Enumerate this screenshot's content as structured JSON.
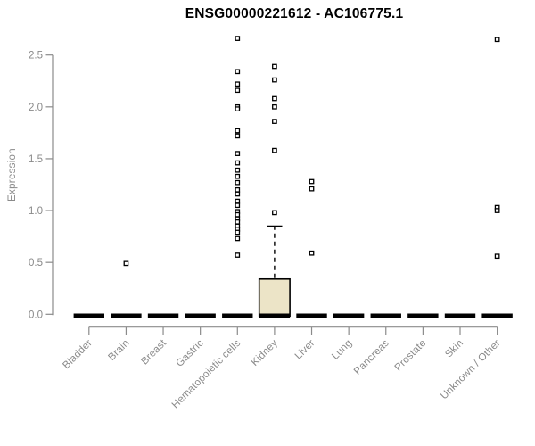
{
  "chart_data": {
    "type": "boxplot",
    "title": "ENSG00000221612 - AC106775.1",
    "ylabel": "Expression",
    "xlabel": "",
    "grid": false,
    "legend": null,
    "ylim": [
      0,
      2.5
    ],
    "yticks": [
      0,
      0.5,
      1.0,
      1.5,
      2.0,
      2.5
    ],
    "ytick_labels": [
      "0.0",
      "0.5",
      "1.0",
      "1.5",
      "2.0",
      "2.5"
    ],
    "categories": [
      "Bladder",
      "Brain",
      "Breast",
      "Gastric",
      "Hematopoietic cells",
      "Kidney",
      "Liver",
      "Lung",
      "Pancreas",
      "Prostate",
      "Skin",
      "Unknown / Other"
    ],
    "colors": {
      "axis": "#8b8b8b",
      "text": "#8a8a8a",
      "title": "#000000",
      "box_fill": "#ece4c7",
      "box_stroke": "#000000",
      "median": "#000000",
      "point_fill": "#ffffff",
      "point_stroke": "#000000",
      "background": "#ffffff"
    },
    "series": [
      {
        "category": "Bladder",
        "q1": 0,
        "median": 0,
        "q3": 0,
        "whisker_low": 0,
        "whisker_high": 0,
        "outliers": []
      },
      {
        "category": "Brain",
        "q1": 0,
        "median": 0,
        "q3": 0,
        "whisker_low": 0,
        "whisker_high": 0,
        "outliers": [
          0.49
        ]
      },
      {
        "category": "Breast",
        "q1": 0,
        "median": 0,
        "q3": 0,
        "whisker_low": 0,
        "whisker_high": 0,
        "outliers": []
      },
      {
        "category": "Gastric",
        "q1": 0,
        "median": 0,
        "q3": 0,
        "whisker_low": 0,
        "whisker_high": 0,
        "outliers": []
      },
      {
        "category": "Hematopoietic cells",
        "q1": 0,
        "median": 0,
        "q3": 0,
        "whisker_low": 0,
        "whisker_high": 0,
        "outliers": [
          2.66,
          2.34,
          2.22,
          2.16,
          2.0,
          1.98,
          1.77,
          1.72,
          1.55,
          1.46,
          1.39,
          1.33,
          1.27,
          1.2,
          1.16,
          1.09,
          1.05,
          0.99,
          0.96,
          0.92,
          0.89,
          0.85,
          0.82,
          0.79,
          0.73,
          0.57
        ]
      },
      {
        "category": "Kidney",
        "q1": 0,
        "median": 0,
        "q3": 0.34,
        "whisker_low": 0,
        "whisker_high": 0.85,
        "outliers": [
          2.39,
          2.26,
          2.08,
          2.0,
          1.86,
          1.58,
          0.98
        ]
      },
      {
        "category": "Liver",
        "q1": 0,
        "median": 0,
        "q3": 0,
        "whisker_low": 0,
        "whisker_high": 0,
        "outliers": [
          1.28,
          1.21,
          0.59
        ]
      },
      {
        "category": "Lung",
        "q1": 0,
        "median": 0,
        "q3": 0,
        "whisker_low": 0,
        "whisker_high": 0,
        "outliers": []
      },
      {
        "category": "Pancreas",
        "q1": 0,
        "median": 0,
        "q3": 0,
        "whisker_low": 0,
        "whisker_high": 0,
        "outliers": []
      },
      {
        "category": "Prostate",
        "q1": 0,
        "median": 0,
        "q3": 0,
        "whisker_low": 0,
        "whisker_high": 0,
        "outliers": []
      },
      {
        "category": "Skin",
        "q1": 0,
        "median": 0,
        "q3": 0,
        "whisker_low": 0,
        "whisker_high": 0,
        "outliers": []
      },
      {
        "category": "Unknown / Other",
        "q1": 0,
        "median": 0,
        "q3": 0,
        "whisker_low": 0,
        "whisker_high": 0,
        "outliers": [
          2.65,
          1.03,
          1.0,
          0.56
        ]
      }
    ]
  }
}
